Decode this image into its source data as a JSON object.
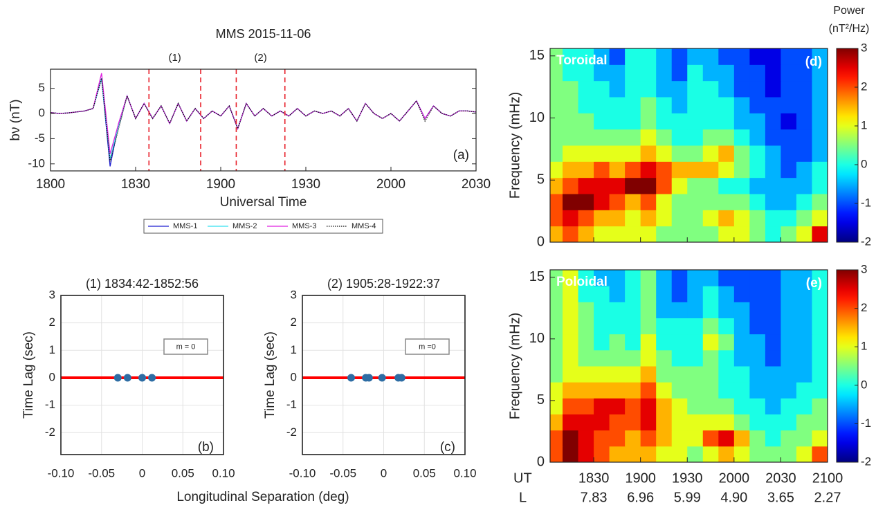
{
  "chart_data": [
    {
      "type": "line",
      "title": "MMS  2015-11-06",
      "xlabel": "Universal Time",
      "ylabel": "bν (nT)",
      "panel_label": "(a)",
      "x": [
        1080,
        1083,
        1086,
        1089,
        1092,
        1095,
        1098,
        1101,
        1104,
        1107,
        1110,
        1113,
        1116,
        1119,
        1122,
        1125,
        1128,
        1131,
        1134,
        1137,
        1140,
        1143,
        1146,
        1149,
        1152,
        1155,
        1158,
        1161,
        1164,
        1167,
        1170,
        1173,
        1176,
        1179,
        1182,
        1185,
        1188,
        1191,
        1194,
        1197,
        1200,
        1203,
        1206,
        1209,
        1212,
        1215,
        1218,
        1221,
        1224,
        1227,
        1230
      ],
      "series": [
        {
          "name": "MMS-1",
          "color": "#1f1fd0",
          "style": "solid",
          "values": [
            0.2,
            0,
            0.1,
            0.3,
            0.5,
            1,
            7,
            -10.5,
            -2,
            3.5,
            -1,
            2,
            -1,
            1.5,
            -2,
            2,
            -1.5,
            1,
            -1,
            0.5,
            -0.5,
            1.5,
            -3,
            2,
            -0.5,
            1,
            -0.5,
            0.5,
            -0.5,
            1,
            -0.5,
            0.5,
            0,
            0.5,
            -0.5,
            1,
            -1.5,
            2,
            0,
            -1,
            0,
            -1.5,
            0.5,
            2.5,
            -1,
            1.5,
            0,
            -0.5,
            0.5,
            0.5,
            0.3
          ]
        },
        {
          "name": "MMS-2",
          "color": "#33e0f0",
          "style": "solid",
          "values": [
            0.2,
            0,
            0.1,
            0.3,
            0.5,
            1,
            7,
            -9,
            -2.5,
            3.5,
            -1,
            2,
            -1,
            1.5,
            -2,
            2,
            -1.5,
            1,
            -1,
            0.5,
            -0.5,
            1.5,
            -3,
            2,
            -0.5,
            1,
            -0.5,
            0.5,
            -0.5,
            1,
            -0.5,
            0.5,
            0,
            0.5,
            -0.5,
            1,
            -1.5,
            2,
            0,
            -1,
            0,
            -1.5,
            0.5,
            2.5,
            -1,
            1.5,
            0,
            -0.5,
            0.5,
            0.5,
            0.3
          ]
        },
        {
          "name": "MMS-3",
          "color": "#e020e0",
          "style": "solid",
          "values": [
            0.2,
            0,
            0.1,
            0.3,
            0.5,
            1,
            8,
            -8,
            -2,
            3.5,
            -1,
            2,
            -1,
            1.5,
            -2,
            2,
            -1.5,
            1,
            -1,
            0.5,
            -0.5,
            1.5,
            -3,
            2,
            -0.5,
            1,
            -0.5,
            0.5,
            -0.5,
            1,
            -0.5,
            0.5,
            0,
            0.5,
            -0.5,
            1,
            -1.5,
            2,
            0,
            -1,
            0,
            -1.5,
            0.5,
            2.5,
            -1,
            1.5,
            0,
            -0.5,
            0.5,
            0.5,
            0.3
          ]
        },
        {
          "name": "MMS-4",
          "color": "#111111",
          "style": "dotted",
          "values": [
            0.2,
            0,
            0.1,
            0.3,
            0.5,
            1,
            7,
            -9.5,
            -3,
            3.5,
            -1,
            2,
            -1,
            1.5,
            -2,
            2,
            -1.5,
            1,
            -1,
            0.5,
            -0.5,
            1.5,
            -3,
            2,
            -0.5,
            1,
            -0.5,
            0.5,
            -0.5,
            1,
            -0.5,
            0.5,
            0,
            0.5,
            -0.5,
            1,
            -1.5,
            2,
            0,
            -1,
            0,
            -1.5,
            0.5,
            2.5,
            -1.5,
            1.5,
            0,
            -0.5,
            0.5,
            0.5,
            0.3
          ]
        }
      ],
      "xlim": [
        1080,
        1230
      ],
      "xticks": [
        {
          "value": 1080,
          "label": "1800"
        },
        {
          "value": 1110,
          "label": "1830"
        },
        {
          "value": 1140,
          "label": "1900"
        },
        {
          "value": 1170,
          "label": "1930"
        },
        {
          "value": 1200,
          "label": "2000"
        },
        {
          "value": 1230,
          "label": "2030"
        }
      ],
      "ylim": [
        -11.4,
        8.8
      ],
      "yticks": [
        -10,
        -5,
        0,
        5
      ],
      "intervals": [
        {
          "label": "(1)",
          "start": 1114.7,
          "end": 1132.93
        },
        {
          "label": "(2)",
          "start": 1145.47,
          "end": 1162.62
        }
      ]
    },
    {
      "type": "scatter",
      "title": "(1) 1834:42-1852:56",
      "ylabel": "Time Lag (sec)",
      "xlabel": "Longitudinal Separation (deg)",
      "panel_label": "(b)",
      "annotation": "m = 0",
      "x": [
        -0.03,
        -0.018,
        0,
        0.012
      ],
      "values": [
        0,
        0,
        0,
        0
      ],
      "color": "#2e6da4",
      "reference_line": 0,
      "reference_color": "#ff0000",
      "xlim": [
        -0.1,
        0.1
      ],
      "xticks": [
        {
          "value": -0.1,
          "label": "-0.10"
        },
        -0.05,
        0,
        0.05,
        {
          "value": 0.1,
          "label": "0.10"
        }
      ],
      "ylim": [
        -2.8,
        3
      ],
      "yticks": [
        -2,
        -1,
        0,
        1,
        2,
        3
      ],
      "grid": true
    },
    {
      "type": "scatter",
      "title": "(2) 1905:28-1922:37",
      "ylabel": "Time Lag (sec)",
      "panel_label": "(c)",
      "annotation": "m =0",
      "x": [
        -0.04,
        -0.022,
        -0.018,
        -0.002,
        0.018,
        0.022
      ],
      "values": [
        0,
        0,
        0,
        0,
        0,
        0
      ],
      "color": "#2e6da4",
      "reference_line": 0,
      "reference_color": "#ff0000",
      "xlim": [
        -0.1,
        0.1
      ],
      "xticks": [
        {
          "value": -0.1,
          "label": "-0.10"
        },
        -0.05,
        0,
        0.05,
        {
          "value": 0.1,
          "label": "0.10"
        }
      ],
      "ylim": [
        -2.8,
        3
      ],
      "yticks": [
        -2,
        -1,
        0,
        1,
        2,
        3
      ],
      "grid": true
    },
    {
      "type": "heatmap",
      "label": "Toroidal",
      "panel_label": "(d)",
      "ylabel": "Frequency (mHz)",
      "colorbar_title": "Power",
      "colorbar_unit": "(nT²/Hz)",
      "x_edges": [
        1080,
        1090,
        1100,
        1110,
        1120,
        1130,
        1140,
        1150,
        1160,
        1170,
        1180,
        1190,
        1200,
        1210,
        1220,
        1230,
        1240,
        1250,
        1260
      ],
      "y_edges": [
        0,
        1.3,
        2.6,
        3.9,
        5.2,
        6.5,
        7.8,
        9.1,
        10.4,
        11.7,
        13,
        14.3,
        15.6
      ],
      "z": [
        [
          1.5,
          2,
          1.5,
          1,
          1,
          1,
          1,
          0.5,
          0.5,
          0.5,
          0.5,
          1,
          1,
          0.5,
          0,
          0.5,
          1,
          2.5
        ],
        [
          2,
          2.5,
          2,
          1.5,
          1.5,
          1,
          1.5,
          1,
          0.5,
          0.5,
          1,
          1.5,
          1,
          0.5,
          0,
          0,
          0.5,
          1
        ],
        [
          2,
          3,
          3,
          2.5,
          2,
          1.5,
          2,
          1,
          0.5,
          0.5,
          0.5,
          0.5,
          0.5,
          0,
          -0.5,
          -0.5,
          0,
          0.5
        ],
        [
          1.5,
          2,
          2.5,
          2.5,
          2.5,
          3,
          3,
          2,
          1,
          0.5,
          0.5,
          0,
          0,
          -0.5,
          -0.5,
          -0.5,
          -0.5,
          0
        ],
        [
          1,
          1.5,
          1.5,
          2,
          1.5,
          2,
          2.5,
          2,
          1.5,
          1.5,
          1.5,
          1,
          0.5,
          0,
          -0.5,
          -1,
          -0.5,
          0
        ],
        [
          0.5,
          1,
          1,
          1,
          1,
          1,
          1.5,
          1,
          0.5,
          0.5,
          1,
          1.5,
          0.5,
          0,
          -0.5,
          -1,
          -1,
          -0.5
        ],
        [
          0.5,
          0.5,
          0.5,
          0.5,
          0.5,
          0.5,
          1,
          0.5,
          0,
          0,
          0.5,
          0.5,
          0,
          -0.5,
          -1,
          -1,
          -1,
          -0.5
        ],
        [
          0.5,
          0.5,
          0.5,
          0,
          0,
          0,
          0.5,
          0,
          0,
          0,
          0,
          0,
          -0.5,
          -0.5,
          -1,
          -1.5,
          -1,
          -0.5
        ],
        [
          0.5,
          0.5,
          0,
          0,
          0,
          0,
          0.5,
          0,
          -0.5,
          0,
          0,
          0,
          -0.5,
          -1,
          -1,
          -1,
          -1,
          -0.5
        ],
        [
          0.5,
          0.5,
          0,
          0,
          -0.5,
          0,
          0,
          -0.5,
          -0.5,
          0,
          0,
          -0.5,
          -1,
          -1,
          -1.5,
          -1,
          -1,
          -0.5
        ],
        [
          0.5,
          0,
          0,
          -0.5,
          -0.5,
          0,
          0,
          -0.5,
          -1,
          0,
          -0.5,
          -0.5,
          -1,
          -1,
          -1.5,
          -1,
          -1,
          -0.5
        ],
        [
          0.5,
          0,
          0,
          -0.5,
          -1,
          0,
          0,
          -0.5,
          -1,
          -0.5,
          -0.5,
          -1,
          -1,
          -1.5,
          -1.5,
          -1,
          -1,
          -0.5
        ]
      ],
      "xlim": [
        1082,
        1260
      ],
      "xticks": [
        1110,
        1140,
        1170,
        1200,
        1230,
        1260
      ],
      "ylim": [
        0,
        15.6
      ],
      "yticks": [
        0,
        5,
        10,
        15
      ],
      "colorbar": {
        "lim": [
          -2,
          3
        ],
        "ticks": [
          -2,
          -1,
          0,
          1,
          2,
          3
        ]
      }
    },
    {
      "type": "heatmap",
      "label": "Poloidal",
      "panel_label": "(e)",
      "ylabel": "Frequency (mHz)",
      "x_edges": [
        1080,
        1090,
        1100,
        1110,
        1120,
        1130,
        1140,
        1150,
        1160,
        1170,
        1180,
        1190,
        1200,
        1210,
        1220,
        1230,
        1240,
        1250,
        1260
      ],
      "y_edges": [
        0,
        1.3,
        2.6,
        3.9,
        5.2,
        6.5,
        7.8,
        9.1,
        10.4,
        11.7,
        13,
        14.3,
        15.6
      ],
      "z": [
        [
          2,
          3,
          2.5,
          2,
          1.5,
          1.5,
          1.5,
          1,
          1,
          0.5,
          1,
          1.5,
          1,
          0.5,
          0.5,
          0.5,
          1,
          2
        ],
        [
          2,
          3,
          2.5,
          2,
          2,
          1.5,
          2,
          1.5,
          1,
          1,
          2,
          2.5,
          1.5,
          0.5,
          0,
          0.5,
          0.5,
          1
        ],
        [
          1.5,
          2.5,
          2.5,
          2.5,
          2,
          2,
          2.5,
          1.5,
          1,
          1,
          1,
          1,
          0.5,
          0,
          0,
          0,
          0.5,
          0.5
        ],
        [
          1,
          2,
          2,
          2.5,
          2.5,
          2,
          2.5,
          1.5,
          1,
          0.5,
          0.5,
          0.5,
          0,
          0,
          -0.5,
          0,
          0,
          0.5
        ],
        [
          1,
          1.5,
          1.5,
          1.5,
          1.5,
          1.5,
          2,
          1,
          0.5,
          0.5,
          0.5,
          0,
          0,
          -0.5,
          -0.5,
          -0.5,
          0,
          0
        ],
        [
          0.5,
          1,
          1,
          1,
          1,
          1,
          1.5,
          0.5,
          0.5,
          0.5,
          0.5,
          0,
          0,
          -0.5,
          -0.5,
          -0.5,
          -0.5,
          0
        ],
        [
          0.5,
          1,
          0.5,
          0.5,
          0.5,
          0.5,
          1,
          0.5,
          0,
          0,
          0.5,
          0,
          -0.5,
          -0.5,
          -1,
          -0.5,
          -0.5,
          0
        ],
        [
          0.5,
          1,
          0.5,
          0,
          0.5,
          0,
          1,
          0,
          0,
          0,
          1,
          0.5,
          -0.5,
          -0.5,
          -1,
          -0.5,
          -0.5,
          0
        ],
        [
          0.5,
          1,
          0.5,
          0,
          0,
          0,
          0.5,
          0,
          0,
          0,
          0.5,
          0,
          -0.5,
          -1,
          -1,
          -0.5,
          -0.5,
          0
        ],
        [
          0.5,
          1,
          0.5,
          0,
          0,
          0,
          0.5,
          -0.5,
          -0.5,
          -0.5,
          0,
          -0.5,
          -0.5,
          -1,
          -1,
          -0.5,
          -0.5,
          0
        ],
        [
          0.5,
          1,
          0,
          0,
          -0.5,
          0,
          0.5,
          -0.5,
          -1,
          -0.5,
          0,
          -0.5,
          -1,
          -1,
          -1,
          -0.5,
          -0.5,
          0
        ],
        [
          0.5,
          1,
          0,
          -0.5,
          -0.5,
          0,
          0.5,
          -0.5,
          -1,
          -0.5,
          -0.5,
          -1,
          -1,
          -1,
          -1,
          -0.5,
          -0.5,
          0
        ]
      ],
      "xlim": [
        1082,
        1260
      ],
      "xticks": [
        {
          "value": 1110,
          "label": "1830"
        },
        {
          "value": 1140,
          "label": "1900"
        },
        {
          "value": 1170,
          "label": "1930"
        },
        {
          "value": 1200,
          "label": "2000"
        },
        {
          "value": 1230,
          "label": "2030"
        },
        {
          "value": 1260,
          "label": "2100"
        }
      ],
      "x_row_labels": [
        "UT",
        "L"
      ],
      "l_values": [
        7.83,
        6.96,
        5.99,
        {
          "value": 4.9,
          "label": "4.90"
        },
        3.65,
        2.27
      ],
      "ylim": [
        0,
        15.6
      ],
      "yticks": [
        0,
        5,
        10,
        15
      ],
      "colorbar": {
        "lim": [
          -2,
          3
        ],
        "ticks": [
          -2,
          -1,
          0,
          1,
          2,
          3
        ]
      }
    }
  ]
}
